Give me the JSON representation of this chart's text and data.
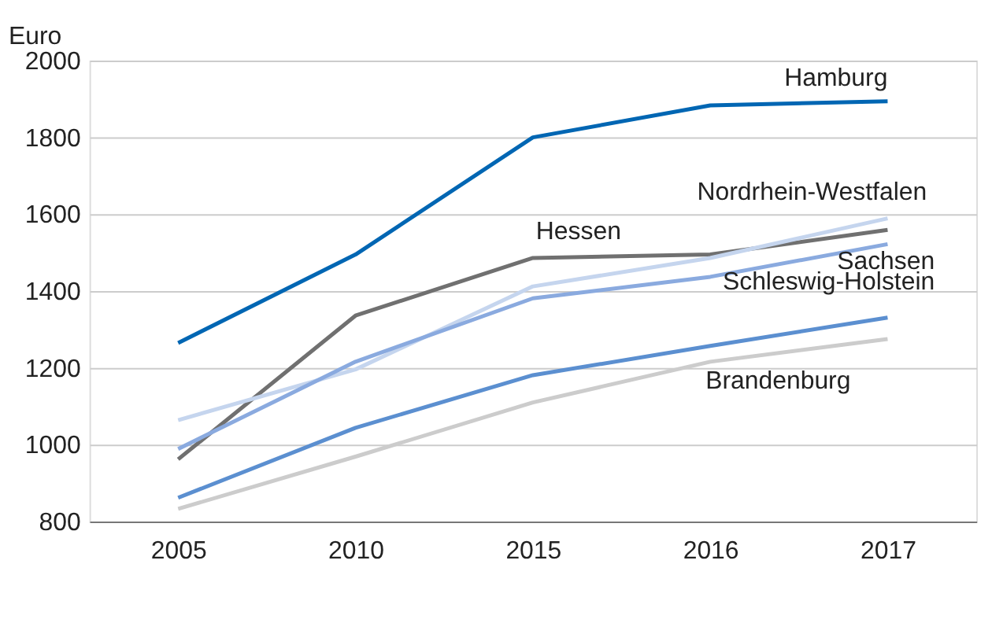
{
  "chart_data": {
    "type": "line",
    "ylabel": "Euro",
    "categories": [
      "2005",
      "2010",
      "2015",
      "2016",
      "2017"
    ],
    "series": [
      {
        "name": "Hamburg",
        "color": "#0066b3",
        "values": [
          1265,
          1495,
          1800,
          1883,
          1894
        ]
      },
      {
        "name": "Hessen",
        "color": "#707070",
        "values": [
          962,
          1336,
          1486,
          1495,
          1559
        ]
      },
      {
        "name": "Nordrhein-Westfalen",
        "color": "#c5d5ee",
        "values": [
          1064,
          1196,
          1412,
          1486,
          1589
        ]
      },
      {
        "name": "Sachsen",
        "color": "#8aaadf",
        "values": [
          989,
          1216,
          1381,
          1437,
          1522
        ]
      },
      {
        "name": "Schleswig-Holstein",
        "color": "#5b8fd0",
        "values": [
          862,
          1044,
          1181,
          1257,
          1331
        ]
      },
      {
        "name": "Brandenburg",
        "color": "#cccccc",
        "values": [
          833,
          969,
          1110,
          1216,
          1275
        ]
      }
    ],
    "ylim": [
      800,
      2000
    ],
    "yticks": [
      800,
      1000,
      1200,
      1400,
      1600,
      1800,
      2000
    ],
    "grid": "y",
    "legend": false,
    "marker": "none",
    "line_style": "solid"
  }
}
